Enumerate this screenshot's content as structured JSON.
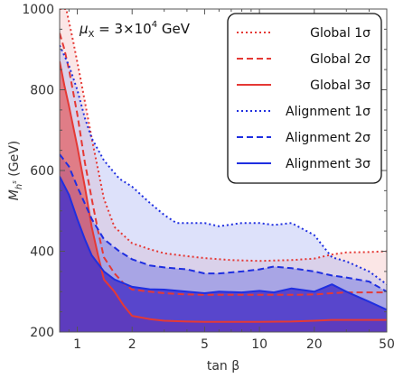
{
  "chart_data": {
    "type": "area",
    "annotation_parts": [
      "μ",
      "X",
      " = 3×10",
      "4",
      " GeV"
    ],
    "xlabel": "tan β",
    "ylabel_parts": [
      "M",
      "h",
      "s",
      " (GeV)"
    ],
    "xscale": "log",
    "xlim": [
      0.8,
      50
    ],
    "ylim": [
      200,
      1000
    ],
    "x_ticks": [
      1,
      2,
      5,
      10,
      20,
      50
    ],
    "y_ticks": [
      200,
      400,
      600,
      800,
      1000
    ],
    "x_tick_labels": [
      "1",
      "2",
      "5",
      "10",
      "20",
      "50"
    ],
    "y_tick_labels": [
      "200",
      "400",
      "600",
      "800",
      "1000"
    ],
    "grid": false,
    "legend_position": "top-right",
    "fills": [
      {
        "name": "Global 1σ",
        "color": "#ef9a9a",
        "opacity": 0.25,
        "upper": [
          [
            0.8,
            1000
          ],
          [
            0.87,
            1000
          ],
          [
            0.95,
            920
          ],
          [
            1.05,
            820
          ],
          [
            1.2,
            680
          ],
          [
            1.4,
            530
          ],
          [
            1.6,
            460
          ],
          [
            2,
            420
          ],
          [
            2.5,
            405
          ],
          [
            3,
            395
          ],
          [
            4,
            388
          ],
          [
            5,
            383
          ],
          [
            7,
            378
          ],
          [
            10,
            376
          ],
          [
            15,
            378
          ],
          [
            20,
            382
          ],
          [
            25,
            392
          ],
          [
            30,
            397
          ],
          [
            40,
            398
          ],
          [
            50,
            400
          ]
        ],
        "lower": [
          [
            0.8,
            200
          ],
          [
            50,
            200
          ]
        ]
      },
      {
        "name": "Alignment 1σ",
        "color": "#9fa8f2",
        "opacity": 0.35,
        "upper": [
          [
            0.8,
            910
          ],
          [
            0.9,
            860
          ],
          [
            1.0,
            800
          ],
          [
            1.1,
            730
          ],
          [
            1.2,
            680
          ],
          [
            1.4,
            625
          ],
          [
            1.7,
            580
          ],
          [
            2,
            560
          ],
          [
            2.5,
            520
          ],
          [
            3,
            490
          ],
          [
            3.5,
            470
          ],
          [
            4,
            470
          ],
          [
            5,
            470
          ],
          [
            6,
            462
          ],
          [
            8,
            470
          ],
          [
            10,
            470
          ],
          [
            12,
            465
          ],
          [
            15,
            470
          ],
          [
            20,
            440
          ],
          [
            25,
            385
          ],
          [
            30,
            375
          ],
          [
            40,
            350
          ],
          [
            50,
            318
          ]
        ],
        "lower": [
          [
            0.8,
            200
          ],
          [
            50,
            200
          ]
        ]
      },
      {
        "name": "Alignment 2σ",
        "color": "#6a6fe0",
        "opacity": 0.45,
        "upper": [
          [
            0.8,
            640
          ],
          [
            0.9,
            610
          ],
          [
            1.0,
            560
          ],
          [
            1.2,
            480
          ],
          [
            1.4,
            430
          ],
          [
            1.7,
            400
          ],
          [
            2,
            380
          ],
          [
            2.5,
            365
          ],
          [
            3,
            360
          ],
          [
            4,
            355
          ],
          [
            5,
            345
          ],
          [
            6,
            345
          ],
          [
            8,
            350
          ],
          [
            10,
            355
          ],
          [
            12,
            362
          ],
          [
            15,
            358
          ],
          [
            20,
            350
          ],
          [
            25,
            340
          ],
          [
            30,
            335
          ],
          [
            40,
            325
          ],
          [
            50,
            300
          ]
        ],
        "lower": [
          [
            0.8,
            200
          ],
          [
            50,
            200
          ]
        ]
      },
      {
        "name": "Global 3σ",
        "color": "#e53935",
        "opacity": 0.55,
        "upper": [
          [
            0.8,
            870
          ],
          [
            0.85,
            810
          ],
          [
            0.9,
            760
          ],
          [
            1.0,
            660
          ],
          [
            1.1,
            560
          ],
          [
            1.2,
            460
          ],
          [
            1.3,
            390
          ],
          [
            1.4,
            330
          ],
          [
            1.6,
            300
          ],
          [
            1.8,
            265
          ],
          [
            2,
            240
          ],
          [
            2.5,
            232
          ],
          [
            3,
            228
          ],
          [
            4,
            226
          ],
          [
            5,
            225
          ],
          [
            7,
            225
          ],
          [
            10,
            225
          ],
          [
            15,
            226
          ],
          [
            20,
            228
          ],
          [
            25,
            230
          ],
          [
            30,
            230
          ],
          [
            40,
            230
          ],
          [
            50,
            230
          ]
        ],
        "lower": [
          [
            0.8,
            200
          ],
          [
            50,
            200
          ]
        ]
      },
      {
        "name": "Alignment 3σ",
        "color": "#4a35c8",
        "opacity": 0.85,
        "upper": [
          [
            0.8,
            585
          ],
          [
            0.9,
            540
          ],
          [
            1.0,
            480
          ],
          [
            1.1,
            430
          ],
          [
            1.2,
            390
          ],
          [
            1.4,
            350
          ],
          [
            1.6,
            330
          ],
          [
            2,
            312
          ],
          [
            2.5,
            306
          ],
          [
            3,
            305
          ],
          [
            4,
            300
          ],
          [
            5,
            296
          ],
          [
            6,
            300
          ],
          [
            8,
            298
          ],
          [
            10,
            302
          ],
          [
            12,
            298
          ],
          [
            15,
            308
          ],
          [
            20,
            300
          ],
          [
            25,
            318
          ],
          [
            30,
            300
          ],
          [
            40,
            275
          ],
          [
            50,
            255
          ]
        ],
        "lower": [
          [
            0.8,
            200
          ],
          [
            50,
            200
          ]
        ]
      }
    ],
    "series": [
      {
        "name": "Global 1σ",
        "color": "#e53935",
        "style": "dotted",
        "x": [
          0.8,
          0.87,
          0.95,
          1.05,
          1.2,
          1.4,
          1.6,
          2,
          2.5,
          3,
          4,
          5,
          7,
          10,
          15,
          20,
          25,
          30,
          40,
          50
        ],
        "y": [
          1000,
          1000,
          920,
          820,
          680,
          530,
          460,
          420,
          405,
          395,
          388,
          383,
          378,
          376,
          378,
          382,
          392,
          397,
          398,
          400
        ]
      },
      {
        "name": "Global 2σ",
        "color": "#e53935",
        "style": "dashed",
        "x": [
          0.8,
          0.85,
          0.9,
          1.0,
          1.1,
          1.2,
          1.3,
          1.4,
          1.6,
          1.8,
          2,
          2.5,
          3,
          4,
          5,
          7,
          10,
          15,
          20,
          25,
          30,
          40,
          50
        ],
        "y": [
          940,
          900,
          850,
          740,
          620,
          530,
          450,
          385,
          345,
          320,
          305,
          300,
          296,
          293,
          292,
          292,
          292,
          292,
          293,
          296,
          298,
          298,
          298
        ]
      },
      {
        "name": "Global 3σ",
        "color": "#e53935",
        "style": "solid",
        "x": [
          0.8,
          0.85,
          0.9,
          1.0,
          1.1,
          1.2,
          1.3,
          1.4,
          1.6,
          1.8,
          2,
          2.5,
          3,
          4,
          5,
          7,
          10,
          15,
          20,
          25,
          30,
          40,
          50
        ],
        "y": [
          870,
          810,
          760,
          660,
          560,
          460,
          390,
          330,
          300,
          265,
          240,
          232,
          228,
          226,
          225,
          225,
          225,
          226,
          228,
          230,
          230,
          230,
          230
        ]
      },
      {
        "name": "Alignment 1σ",
        "color": "#1f2fe0",
        "style": "dotted",
        "x": [
          0.8,
          0.9,
          1.0,
          1.1,
          1.2,
          1.4,
          1.7,
          2,
          2.5,
          3,
          3.5,
          4,
          5,
          6,
          8,
          10,
          12,
          15,
          20,
          25,
          30,
          40,
          50
        ],
        "y": [
          910,
          860,
          800,
          730,
          680,
          625,
          580,
          560,
          520,
          490,
          470,
          470,
          470,
          462,
          470,
          470,
          465,
          470,
          440,
          385,
          375,
          350,
          318
        ]
      },
      {
        "name": "Alignment 2σ",
        "color": "#1f2fe0",
        "style": "dashed",
        "x": [
          0.8,
          0.9,
          1.0,
          1.2,
          1.4,
          1.7,
          2,
          2.5,
          3,
          4,
          5,
          6,
          8,
          10,
          12,
          15,
          20,
          25,
          30,
          40,
          50
        ],
        "y": [
          640,
          610,
          560,
          480,
          430,
          400,
          380,
          365,
          360,
          355,
          345,
          345,
          350,
          355,
          362,
          358,
          350,
          340,
          335,
          325,
          300
        ]
      },
      {
        "name": "Alignment 3σ",
        "color": "#1f2fe0",
        "style": "solid",
        "x": [
          0.8,
          0.9,
          1.0,
          1.1,
          1.2,
          1.4,
          1.6,
          2,
          2.5,
          3,
          4,
          5,
          6,
          8,
          10,
          12,
          15,
          20,
          25,
          30,
          40,
          50
        ],
        "y": [
          585,
          540,
          480,
          430,
          390,
          350,
          330,
          312,
          306,
          305,
          300,
          296,
          300,
          298,
          302,
          298,
          308,
          300,
          318,
          300,
          275,
          255
        ]
      }
    ]
  }
}
